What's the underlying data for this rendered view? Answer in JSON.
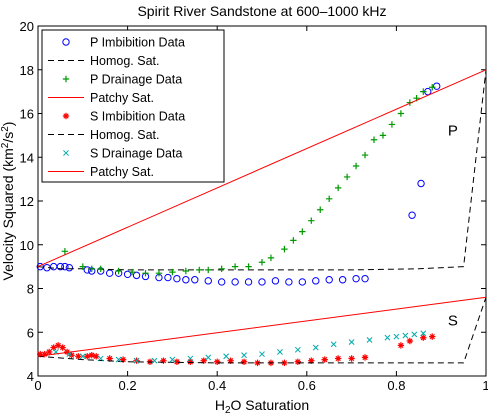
{
  "chart_data": {
    "type": "line",
    "title": "Spirit River Sandstone at 600–1000 kHz",
    "xlabel_main": "H",
    "xlabel_sub": "2",
    "xlabel_rest": "O Saturation",
    "ylabel_main": "Velocity Squared (km",
    "ylabel_sup1": "2",
    "ylabel_mid": "/s",
    "ylabel_sup2": "2",
    "ylabel_end": ")",
    "xlim": [
      0,
      1
    ],
    "ylim": [
      4,
      20
    ],
    "x_ticks": [
      0,
      0.2,
      0.4,
      0.6,
      0.8,
      1
    ],
    "x_tick_labels": [
      "0",
      "0.2",
      "0.4",
      "0.6",
      "0.8",
      "1"
    ],
    "y_ticks": [
      4,
      6,
      8,
      10,
      12,
      14,
      16,
      18,
      20
    ],
    "y_tick_labels": [
      "4",
      "6",
      "8",
      "10",
      "12",
      "14",
      "16",
      "18",
      "20"
    ],
    "grid": false,
    "legend_position": "top-left",
    "annotations": [
      {
        "text": "P",
        "x": 0.915,
        "y": 15.0
      },
      {
        "text": "S",
        "x": 0.915,
        "y": 6.3
      }
    ],
    "series": [
      {
        "name": "P Imbibition Data",
        "style": "circle",
        "color": "#0000ff",
        "points": [
          [
            0.005,
            9.0
          ],
          [
            0.02,
            8.95
          ],
          [
            0.035,
            9.0
          ],
          [
            0.05,
            9.0
          ],
          [
            0.06,
            9.0
          ],
          [
            0.07,
            8.95
          ],
          [
            0.11,
            8.85
          ],
          [
            0.12,
            8.8
          ],
          [
            0.14,
            8.8
          ],
          [
            0.16,
            8.7
          ],
          [
            0.18,
            8.7
          ],
          [
            0.2,
            8.65
          ],
          [
            0.22,
            8.6
          ],
          [
            0.24,
            8.55
          ],
          [
            0.27,
            8.5
          ],
          [
            0.29,
            8.5
          ],
          [
            0.31,
            8.45
          ],
          [
            0.33,
            8.4
          ],
          [
            0.35,
            8.4
          ],
          [
            0.38,
            8.35
          ],
          [
            0.41,
            8.3
          ],
          [
            0.44,
            8.3
          ],
          [
            0.47,
            8.3
          ],
          [
            0.5,
            8.3
          ],
          [
            0.53,
            8.35
          ],
          [
            0.56,
            8.3
          ],
          [
            0.59,
            8.3
          ],
          [
            0.62,
            8.35
          ],
          [
            0.65,
            8.4
          ],
          [
            0.68,
            8.4
          ],
          [
            0.71,
            8.45
          ],
          [
            0.73,
            8.45
          ],
          [
            0.835,
            11.35
          ],
          [
            0.855,
            12.8
          ],
          [
            0.87,
            17.0
          ],
          [
            0.89,
            17.25
          ]
        ]
      },
      {
        "name": "Homog. Sat.",
        "style": "dashed",
        "color": "#000000",
        "points": [
          [
            0,
            9.0
          ],
          [
            0.05,
            8.9
          ],
          [
            0.1,
            8.9
          ],
          [
            0.2,
            8.85
          ],
          [
            0.3,
            8.85
          ],
          [
            0.5,
            8.85
          ],
          [
            0.7,
            8.85
          ],
          [
            0.85,
            8.9
          ],
          [
            0.95,
            9.0
          ],
          [
            1,
            18.0
          ]
        ]
      },
      {
        "name": "P Drainage Data",
        "style": "plus",
        "color": "#009900",
        "points": [
          [
            0.06,
            9.7
          ],
          [
            0.1,
            9.0
          ],
          [
            0.12,
            8.9
          ],
          [
            0.14,
            8.9
          ],
          [
            0.18,
            8.8
          ],
          [
            0.21,
            8.75
          ],
          [
            0.24,
            8.7
          ],
          [
            0.27,
            8.7
          ],
          [
            0.3,
            8.75
          ],
          [
            0.33,
            8.8
          ],
          [
            0.36,
            8.85
          ],
          [
            0.38,
            8.85
          ],
          [
            0.41,
            8.9
          ],
          [
            0.44,
            9.0
          ],
          [
            0.47,
            9.0
          ],
          [
            0.5,
            9.2
          ],
          [
            0.52,
            9.4
          ],
          [
            0.55,
            9.8
          ],
          [
            0.57,
            10.2
          ],
          [
            0.59,
            10.6
          ],
          [
            0.61,
            11.1
          ],
          [
            0.63,
            11.6
          ],
          [
            0.65,
            12.1
          ],
          [
            0.67,
            12.6
          ],
          [
            0.69,
            13.1
          ],
          [
            0.71,
            13.6
          ],
          [
            0.73,
            14.1
          ],
          [
            0.75,
            14.8
          ],
          [
            0.77,
            15.0
          ],
          [
            0.79,
            15.5
          ],
          [
            0.81,
            16.0
          ],
          [
            0.83,
            16.5
          ],
          [
            0.845,
            16.7
          ],
          [
            0.86,
            17.0
          ],
          [
            0.88,
            17.2
          ]
        ]
      },
      {
        "name": "Patchy Sat.",
        "style": "solid",
        "color": "#ff0000",
        "points": [
          [
            0,
            9.0
          ],
          [
            1,
            18.0
          ]
        ]
      },
      {
        "name": "S Imbibition Data",
        "style": "star",
        "color": "#ff0000",
        "points": [
          [
            0.005,
            5.0
          ],
          [
            0.015,
            5.0
          ],
          [
            0.025,
            5.1
          ],
          [
            0.035,
            5.3
          ],
          [
            0.045,
            5.4
          ],
          [
            0.055,
            5.3
          ],
          [
            0.065,
            5.1
          ],
          [
            0.075,
            4.95
          ],
          [
            0.09,
            4.9
          ],
          [
            0.11,
            4.9
          ],
          [
            0.12,
            4.95
          ],
          [
            0.13,
            4.9
          ],
          [
            0.16,
            4.8
          ],
          [
            0.19,
            4.75
          ],
          [
            0.22,
            4.7
          ],
          [
            0.25,
            4.65
          ],
          [
            0.28,
            4.7
          ],
          [
            0.31,
            4.65
          ],
          [
            0.34,
            4.65
          ],
          [
            0.37,
            4.7
          ],
          [
            0.4,
            4.65
          ],
          [
            0.43,
            4.7
          ],
          [
            0.46,
            4.65
          ],
          [
            0.49,
            4.6
          ],
          [
            0.52,
            4.6
          ],
          [
            0.55,
            4.6
          ],
          [
            0.58,
            4.65
          ],
          [
            0.61,
            4.7
          ],
          [
            0.64,
            4.75
          ],
          [
            0.67,
            4.8
          ],
          [
            0.7,
            4.8
          ],
          [
            0.73,
            4.85
          ],
          [
            0.81,
            5.4
          ],
          [
            0.83,
            5.6
          ],
          [
            0.86,
            5.75
          ],
          [
            0.88,
            5.8
          ]
        ]
      },
      {
        "name": "Homog. Sat.",
        "style": "dashed",
        "color": "#000000",
        "points": [
          [
            0,
            4.9
          ],
          [
            0.1,
            4.75
          ],
          [
            0.2,
            4.65
          ],
          [
            0.4,
            4.6
          ],
          [
            0.6,
            4.6
          ],
          [
            0.8,
            4.6
          ],
          [
            0.95,
            4.6
          ],
          [
            1,
            7.6
          ]
        ]
      },
      {
        "name": "S Drainage Data",
        "style": "x",
        "color": "#00aaaa",
        "points": [
          [
            0.04,
            5.1
          ],
          [
            0.07,
            5.0
          ],
          [
            0.1,
            4.9
          ],
          [
            0.14,
            4.8
          ],
          [
            0.18,
            4.75
          ],
          [
            0.22,
            4.7
          ],
          [
            0.26,
            4.7
          ],
          [
            0.3,
            4.75
          ],
          [
            0.34,
            4.8
          ],
          [
            0.38,
            4.85
          ],
          [
            0.42,
            4.9
          ],
          [
            0.46,
            4.95
          ],
          [
            0.5,
            5.0
          ],
          [
            0.54,
            5.1
          ],
          [
            0.58,
            5.2
          ],
          [
            0.62,
            5.3
          ],
          [
            0.66,
            5.45
          ],
          [
            0.7,
            5.55
          ],
          [
            0.74,
            5.65
          ],
          [
            0.78,
            5.75
          ],
          [
            0.8,
            5.8
          ],
          [
            0.82,
            5.85
          ],
          [
            0.84,
            5.9
          ],
          [
            0.86,
            5.95
          ]
        ]
      },
      {
        "name": "Patchy Sat.",
        "style": "solid",
        "color": "#ff0000",
        "points": [
          [
            0,
            4.9
          ],
          [
            1,
            7.6
          ]
        ]
      }
    ]
  }
}
